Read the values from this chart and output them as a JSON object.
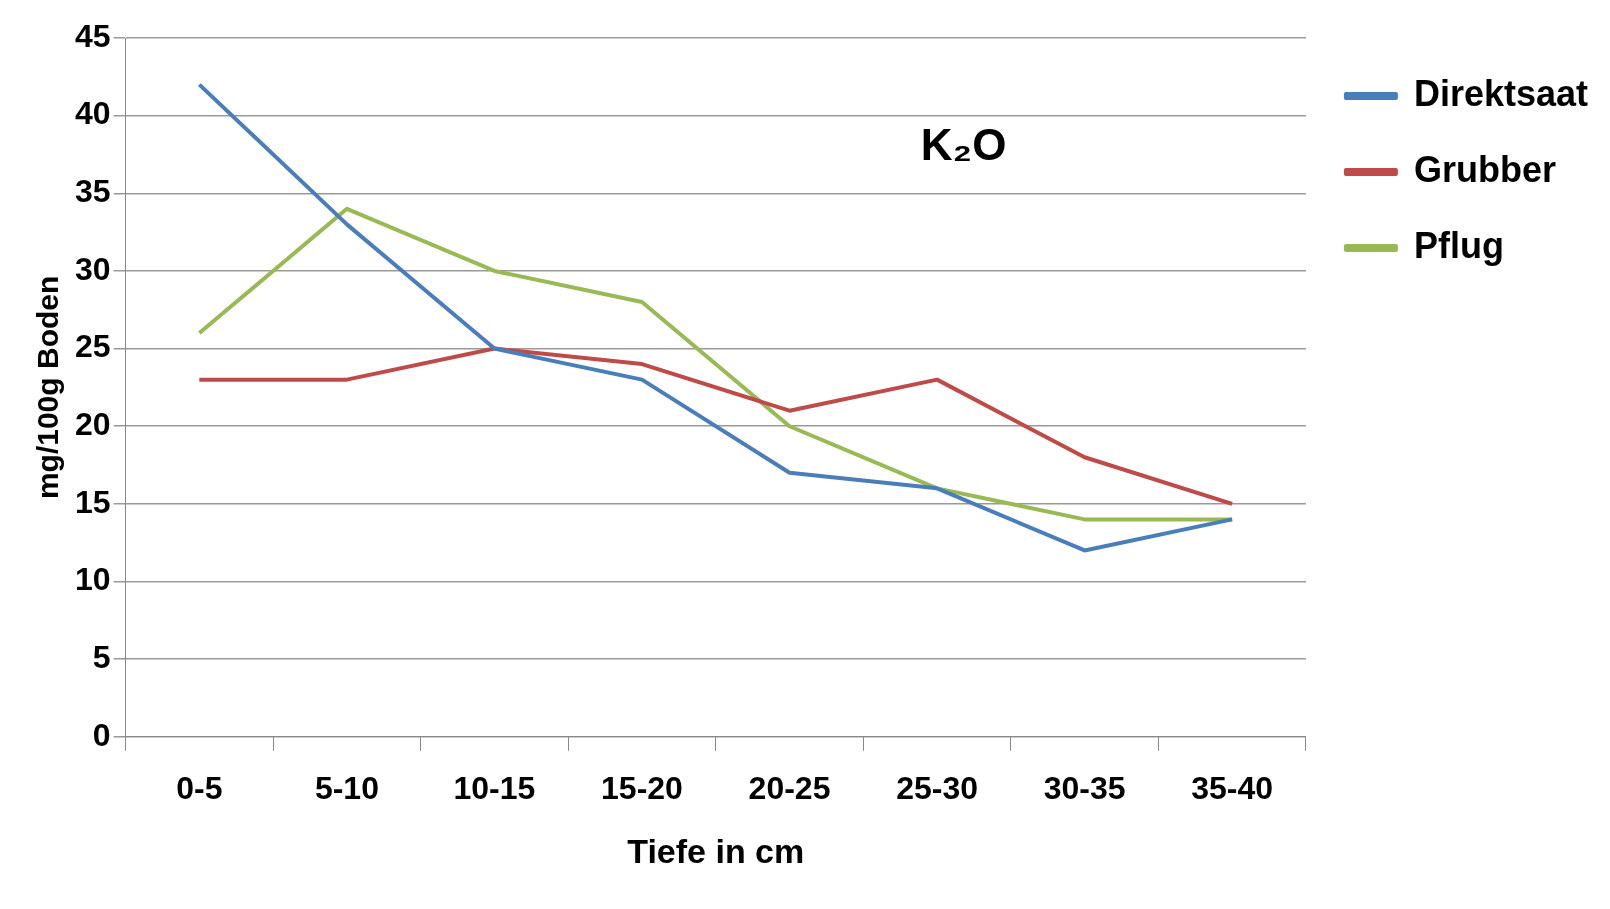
{
  "chart_data": {
    "type": "line",
    "title": "K₂O",
    "xlabel": "Tiefe in cm",
    "ylabel": "mg/100g Boden",
    "categories": [
      "0-5",
      "5-10",
      "10-15",
      "15-20",
      "20-25",
      "25-30",
      "30-35",
      "35-40"
    ],
    "series": [
      {
        "name": "Direktsaat",
        "color": "#4a7ebb",
        "values": [
          42,
          33,
          25,
          23,
          17,
          16,
          12,
          14
        ]
      },
      {
        "name": "Grubber",
        "color": "#be4b48",
        "values": [
          23,
          23,
          25,
          24,
          21,
          23,
          18,
          15
        ]
      },
      {
        "name": "Pflug",
        "color": "#98b954",
        "values": [
          26,
          34,
          30,
          28,
          20,
          16,
          14,
          14
        ]
      }
    ],
    "ylim": [
      0,
      45
    ],
    "yticks": [
      0,
      5,
      10,
      15,
      20,
      25,
      30,
      35,
      40,
      45
    ],
    "grid": "y",
    "legend": "right",
    "marker": "none",
    "line_style": "solid"
  }
}
